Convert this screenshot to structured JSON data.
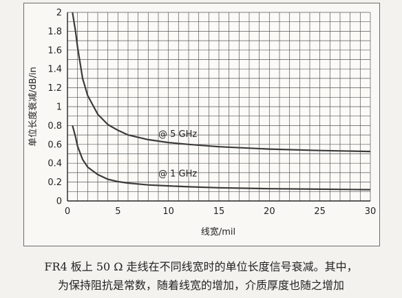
{
  "chart_data": {
    "type": "line",
    "xlabel": "线宽/mil",
    "ylabel": "单位长度衰减/dB/in",
    "xlim": [
      0,
      30
    ],
    "ylim": [
      0,
      2
    ],
    "x_ticks": [
      "0",
      "5",
      "10",
      "15",
      "20",
      "25",
      "30"
    ],
    "y_ticks": [
      "0",
      "0.2",
      "0.4",
      "0.6",
      "0.8",
      "1",
      "1.2",
      "1.4",
      "1.6",
      "1.8",
      "2"
    ],
    "grid": true,
    "series": [
      {
        "name": "@ 5 GHz",
        "color": "#3a3a3a",
        "x": [
          0.5,
          0.8,
          1,
          1.5,
          2,
          3,
          4,
          5,
          6,
          8,
          10,
          12,
          15,
          20,
          25,
          30
        ],
        "y": [
          2.0,
          1.8,
          1.63,
          1.3,
          1.12,
          0.92,
          0.81,
          0.75,
          0.7,
          0.65,
          0.62,
          0.6,
          0.575,
          0.55,
          0.535,
          0.525
        ]
      },
      {
        "name": "@ 1 GHz",
        "color": "#3a3a3a",
        "x": [
          0.5,
          0.8,
          1,
          1.5,
          2,
          3,
          4,
          5,
          6,
          8,
          10,
          12,
          15,
          20,
          25,
          30
        ],
        "y": [
          0.8,
          0.68,
          0.58,
          0.44,
          0.36,
          0.28,
          0.23,
          0.205,
          0.19,
          0.17,
          0.16,
          0.15,
          0.14,
          0.13,
          0.125,
          0.12
        ]
      }
    ],
    "annotations": [
      {
        "text": "@ 5 GHz",
        "x": 9,
        "y": 0.68
      },
      {
        "text": "@ 1 GHz",
        "x": 9,
        "y": 0.26
      }
    ]
  },
  "caption": {
    "line1": "FR4 板上 50 Ω 走线在不同线宽时的单位长度信号衰减。其中，",
    "line2": "为保持阻抗是常数，随着线宽的增加，介质厚度也随之增加"
  }
}
